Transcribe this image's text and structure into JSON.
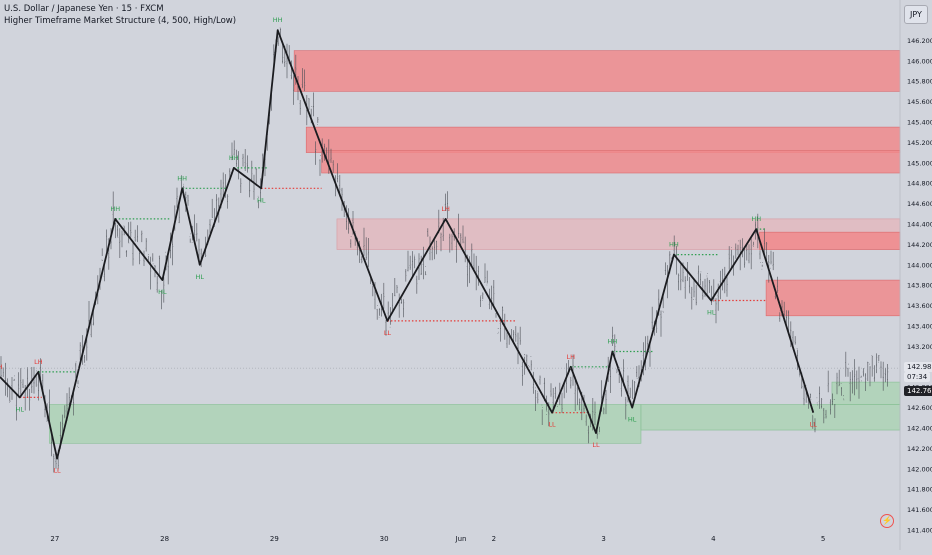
{
  "header": {
    "title": "U.S. Dollar / Japanese Yen · 15 · FXCM",
    "indicator": "Higher Timeframe Market Structure (4, 500, High/Low)"
  },
  "currency_button": "JPY",
  "price_tags": {
    "last": "142.987",
    "countdown": "07:34",
    "other": "142.763"
  },
  "colors": {
    "background": "#d1d4dc",
    "candles": "#4a4d55",
    "structure_line": "#1b1c20",
    "supply_zone": "#f08a8c",
    "supply_zone_faint": "#e4b5bb",
    "demand_zone": "#a7d3b0",
    "bullish_label": "#2e9e50",
    "bearish_label": "#e53935"
  },
  "chart_data": {
    "type": "line",
    "xlabel": "",
    "ylabel": "",
    "y_axis_position": "right",
    "grid": false,
    "ylim": [
      141.4,
      146.5
    ],
    "x_range": [
      0,
      8.2
    ],
    "x_ticks": [
      {
        "x": 0.5,
        "label": "27"
      },
      {
        "x": 1.5,
        "label": "28"
      },
      {
        "x": 2.5,
        "label": "29"
      },
      {
        "x": 3.5,
        "label": "30"
      },
      {
        "x": 4.2,
        "label": "Jun"
      },
      {
        "x": 4.5,
        "label": "2"
      },
      {
        "x": 5.5,
        "label": "3"
      },
      {
        "x": 6.5,
        "label": "4"
      },
      {
        "x": 7.5,
        "label": "5"
      }
    ],
    "y_ticks": [
      "141.400",
      "141.600",
      "141.800",
      "142.000",
      "142.200",
      "142.400",
      "142.600",
      "142.800",
      "143.000",
      "143.200",
      "143.400",
      "143.600",
      "143.800",
      "144.000",
      "144.200",
      "144.400",
      "144.600",
      "144.800",
      "145.000",
      "145.200",
      "145.400",
      "145.600",
      "145.800",
      "146.000",
      "146.200"
    ],
    "series": [
      {
        "type": "zigzag",
        "points": [
          {
            "x": 0.0,
            "y": 142.9
          },
          {
            "x": 0.18,
            "y": 142.7
          },
          {
            "x": 0.35,
            "y": 142.95
          },
          {
            "x": 0.52,
            "y": 142.1
          },
          {
            "x": 1.05,
            "y": 144.45
          },
          {
            "x": 1.48,
            "y": 143.85
          },
          {
            "x": 1.66,
            "y": 144.75
          },
          {
            "x": 1.82,
            "y": 144.0
          },
          {
            "x": 2.13,
            "y": 144.95
          },
          {
            "x": 2.38,
            "y": 144.75
          },
          {
            "x": 2.53,
            "y": 146.3
          },
          {
            "x": 3.53,
            "y": 143.45
          },
          {
            "x": 4.06,
            "y": 144.45
          },
          {
            "x": 5.03,
            "y": 142.55
          },
          {
            "x": 5.2,
            "y": 143.0
          },
          {
            "x": 5.43,
            "y": 142.35
          },
          {
            "x": 5.58,
            "y": 143.15
          },
          {
            "x": 5.76,
            "y": 142.6
          },
          {
            "x": 6.14,
            "y": 144.1
          },
          {
            "x": 6.48,
            "y": 143.65
          },
          {
            "x": 6.89,
            "y": 144.35
          },
          {
            "x": 7.41,
            "y": 142.55
          }
        ]
      }
    ],
    "zones": [
      {
        "kind": "supply",
        "x0": 2.68,
        "x1": 8.2,
        "y0": 145.7,
        "y1": 146.1
      },
      {
        "kind": "supply",
        "x0": 2.79,
        "x1": 8.2,
        "y0": 145.1,
        "y1": 145.35
      },
      {
        "kind": "supply",
        "x0": 2.93,
        "x1": 8.2,
        "y0": 144.9,
        "y1": 145.12
      },
      {
        "kind": "supply_faint",
        "x0": 3.07,
        "x1": 8.2,
        "y0": 144.15,
        "y1": 144.45
      },
      {
        "kind": "supply",
        "x0": 6.92,
        "x1": 8.2,
        "y0": 144.15,
        "y1": 144.32
      },
      {
        "kind": "supply",
        "x0": 6.98,
        "x1": 8.2,
        "y0": 143.5,
        "y1": 143.85
      },
      {
        "kind": "demand",
        "x0": 0.45,
        "x1": 5.84,
        "y0": 142.25,
        "y1": 142.63
      },
      {
        "kind": "demand",
        "x0": 5.84,
        "x1": 8.2,
        "y0": 142.38,
        "y1": 142.63
      },
      {
        "kind": "demand",
        "x0": 7.58,
        "x1": 8.2,
        "y0": 142.63,
        "y1": 142.85
      }
    ],
    "levels": [
      {
        "kind": "bullish",
        "x0": 0.35,
        "x1": 0.7,
        "y": 142.95
      },
      {
        "kind": "bearish",
        "x0": 0.18,
        "x1": 0.38,
        "y": 142.7
      },
      {
        "kind": "bullish",
        "x0": 1.05,
        "x1": 1.55,
        "y": 144.45
      },
      {
        "kind": "bullish",
        "x0": 1.66,
        "x1": 2.06,
        "y": 144.75
      },
      {
        "kind": "bullish",
        "x0": 2.13,
        "x1": 2.44,
        "y": 144.95
      },
      {
        "kind": "bearish",
        "x0": 2.38,
        "x1": 2.93,
        "y": 144.75
      },
      {
        "kind": "bearish",
        "x0": 3.53,
        "x1": 4.7,
        "y": 143.45
      },
      {
        "kind": "bearish",
        "x0": 5.03,
        "x1": 5.38,
        "y": 142.55
      },
      {
        "kind": "bullish",
        "x0": 5.2,
        "x1": 5.55,
        "y": 143.0
      },
      {
        "kind": "bullish",
        "x0": 5.58,
        "x1": 5.95,
        "y": 143.15
      },
      {
        "kind": "bullish",
        "x0": 6.14,
        "x1": 6.55,
        "y": 144.1
      },
      {
        "kind": "bearish",
        "x0": 6.48,
        "x1": 6.98,
        "y": 143.65
      },
      {
        "kind": "bullish",
        "x0": 6.89,
        "x1": 6.97,
        "y": 144.35
      }
    ],
    "annotations": [
      {
        "text": "H",
        "x": 0.0,
        "y": 142.9,
        "kind": "bearish",
        "pos": "above"
      },
      {
        "text": "HL",
        "x": 0.18,
        "y": 142.7,
        "kind": "bullish",
        "pos": "below"
      },
      {
        "text": "LH",
        "x": 0.35,
        "y": 142.95,
        "kind": "bearish",
        "pos": "above"
      },
      {
        "text": "LL",
        "x": 0.52,
        "y": 142.1,
        "kind": "bearish",
        "pos": "below"
      },
      {
        "text": "HH",
        "x": 1.05,
        "y": 144.45,
        "kind": "bullish",
        "pos": "above"
      },
      {
        "text": "HL",
        "x": 1.48,
        "y": 143.85,
        "kind": "bullish",
        "pos": "below"
      },
      {
        "text": "HH",
        "x": 1.66,
        "y": 144.75,
        "kind": "bullish",
        "pos": "above"
      },
      {
        "text": "HL",
        "x": 1.82,
        "y": 144.0,
        "kind": "bullish",
        "pos": "below"
      },
      {
        "text": "HH",
        "x": 2.13,
        "y": 144.95,
        "kind": "bullish",
        "pos": "above"
      },
      {
        "text": "HL",
        "x": 2.38,
        "y": 144.75,
        "kind": "bullish",
        "pos": "below"
      },
      {
        "text": "HH",
        "x": 2.53,
        "y": 146.3,
        "kind": "bullish",
        "pos": "above"
      },
      {
        "text": "LL",
        "x": 3.53,
        "y": 143.45,
        "kind": "bearish",
        "pos": "below"
      },
      {
        "text": "LH",
        "x": 4.06,
        "y": 144.45,
        "kind": "bearish",
        "pos": "above"
      },
      {
        "text": "LL",
        "x": 5.03,
        "y": 142.55,
        "kind": "bearish",
        "pos": "below"
      },
      {
        "text": "LH",
        "x": 5.2,
        "y": 143.0,
        "kind": "bearish",
        "pos": "above"
      },
      {
        "text": "LL",
        "x": 5.43,
        "y": 142.35,
        "kind": "bearish",
        "pos": "below"
      },
      {
        "text": "HH",
        "x": 5.58,
        "y": 143.15,
        "kind": "bullish",
        "pos": "above"
      },
      {
        "text": "HL",
        "x": 5.76,
        "y": 142.6,
        "kind": "bullish",
        "pos": "below"
      },
      {
        "text": "HH",
        "x": 6.14,
        "y": 144.1,
        "kind": "bullish",
        "pos": "above"
      },
      {
        "text": "HL",
        "x": 6.48,
        "y": 143.65,
        "kind": "bullish",
        "pos": "below"
      },
      {
        "text": "HH",
        "x": 6.89,
        "y": 144.35,
        "kind": "bullish",
        "pos": "above"
      },
      {
        "text": "LL",
        "x": 7.41,
        "y": 142.55,
        "kind": "bearish",
        "pos": "below"
      }
    ],
    "last_price": 142.987
  }
}
